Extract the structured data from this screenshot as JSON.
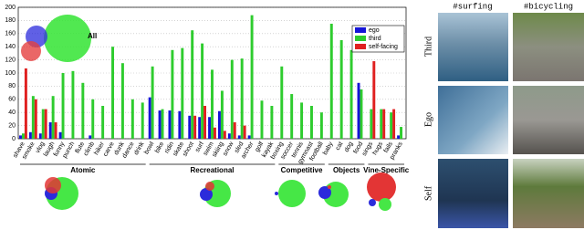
{
  "chart_data": {
    "type": "bar",
    "annotation": "All",
    "categories": [
      "shave",
      "smoke",
      "vlog",
      "laugh",
      "funny",
      "punch",
      "flute",
      "climb",
      "hiker",
      "carve",
      "dunk",
      "dance",
      "drink",
      "bowl",
      "bike",
      "ridin",
      "skate",
      "shoot",
      "surf",
      "swim",
      "skiing",
      "snow",
      "sled",
      "archer",
      "golf",
      "kayak",
      "boxing",
      "soccer",
      "tennis",
      "gymnast",
      "football",
      "baby",
      "cat",
      "dog",
      "food",
      "sings",
      "hugs",
      "fails",
      "pranks"
    ],
    "groups": [
      {
        "name": "Atomic",
        "count": 13
      },
      {
        "name": "Recreational",
        "count": 13
      },
      {
        "name": "Competitive",
        "count": 5
      },
      {
        "name": "Objects",
        "count": 4
      },
      {
        "name": "Vine-Specific",
        "count": 4
      }
    ],
    "series": [
      {
        "name": "ego",
        "color": "#1515d8",
        "values": [
          5,
          10,
          8,
          25,
          10,
          null,
          null,
          5,
          null,
          null,
          null,
          null,
          null,
          63,
          43,
          43,
          42,
          35,
          33,
          33,
          42,
          8,
          5,
          5,
          null,
          null,
          null,
          null,
          null,
          null,
          null,
          null,
          null,
          null,
          85,
          null,
          null,
          null,
          5
        ]
      },
      {
        "name": "third",
        "color": "#2ecc2e",
        "values": [
          8,
          65,
          45,
          65,
          100,
          103,
          85,
          60,
          50,
          140,
          115,
          60,
          55,
          110,
          45,
          135,
          138,
          165,
          145,
          105,
          73,
          120,
          122,
          188,
          58,
          50,
          110,
          68,
          55,
          50,
          40,
          175,
          150,
          135,
          75,
          45,
          45,
          40,
          18
        ]
      },
      {
        "name": "self-facing",
        "color": "#e02020",
        "values": [
          107,
          60,
          45,
          25,
          null,
          null,
          null,
          null,
          null,
          null,
          null,
          null,
          null,
          null,
          null,
          null,
          null,
          35,
          50,
          17,
          12,
          25,
          20,
          null,
          null,
          null,
          null,
          null,
          null,
          null,
          null,
          null,
          null,
          null,
          null,
          118,
          45,
          45,
          null
        ]
      }
    ],
    "ylim": [
      0,
      200
    ],
    "yticks": [
      0,
      20,
      40,
      60,
      80,
      100,
      120,
      140,
      160,
      180,
      200
    ],
    "grid": true,
    "legend": "top-right"
  },
  "images": {
    "columns": [
      "#surfing",
      "#bicycling"
    ],
    "rows": [
      "Third",
      "Ego",
      "Self"
    ]
  }
}
